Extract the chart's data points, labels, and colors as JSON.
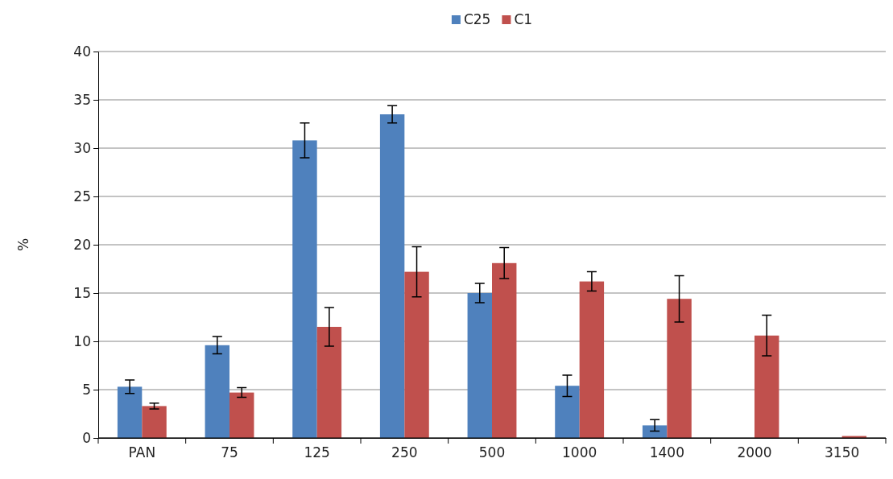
{
  "chart_data": {
    "type": "bar",
    "ylabel": "%",
    "categories": [
      "PAN",
      "75",
      "125",
      "250",
      "500",
      "1000",
      "1400",
      "2000",
      "3150"
    ],
    "series": [
      {
        "name": "C25",
        "color": "#4f81bd",
        "values": [
          5.3,
          9.6,
          30.8,
          33.5,
          15.0,
          5.4,
          1.3,
          0,
          0
        ],
        "errors": [
          0.7,
          0.9,
          1.8,
          0.9,
          1.0,
          1.1,
          0.6,
          null,
          null
        ]
      },
      {
        "name": "C1",
        "color": "#c0504d",
        "values": [
          3.3,
          4.7,
          11.5,
          17.2,
          18.1,
          16.2,
          14.4,
          10.6,
          0.2
        ],
        "errors": [
          0.3,
          0.5,
          2.0,
          2.6,
          1.6,
          1.0,
          2.4,
          2.1,
          null
        ]
      }
    ],
    "ylim": [
      0,
      40
    ],
    "yticks": [
      0,
      5,
      10,
      15,
      20,
      25,
      30,
      35,
      40
    ],
    "grid": "y",
    "legend": "top"
  }
}
